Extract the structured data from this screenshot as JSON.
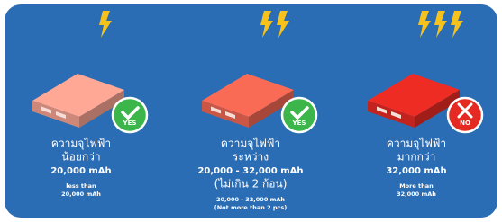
{
  "panels": [
    {
      "heading": [
        "ความจุไฟฟ้า",
        "น้อยกว่า",
        "20,000 mAh"
      ],
      "notes": [
        "less than",
        "20,000 mAh"
      ],
      "badge": "YES",
      "color": "#f2a08e",
      "badge_color": "#3cb54a"
    },
    {
      "heading": [
        "ความจุไฟฟ้า",
        "ระหว่าง",
        "20,000 - 32,000 mAh",
        "(ไม่เกิน 2 ก้อน)"
      ],
      "notes": [
        "20,000 - 32,000 mAh",
        "(Not more than 2 pcs)"
      ],
      "badge": "YES",
      "color": "#ee6652",
      "badge_color": "#3cb54a"
    },
    {
      "heading": [
        "ความจุไฟฟ้า",
        "มากกว่า",
        "32,000 mAh"
      ],
      "notes": [
        "More than",
        "32,000 mAh"
      ],
      "badge": "NO",
      "color": "#e42a22",
      "badge_color": "#e42a22"
    }
  ]
}
